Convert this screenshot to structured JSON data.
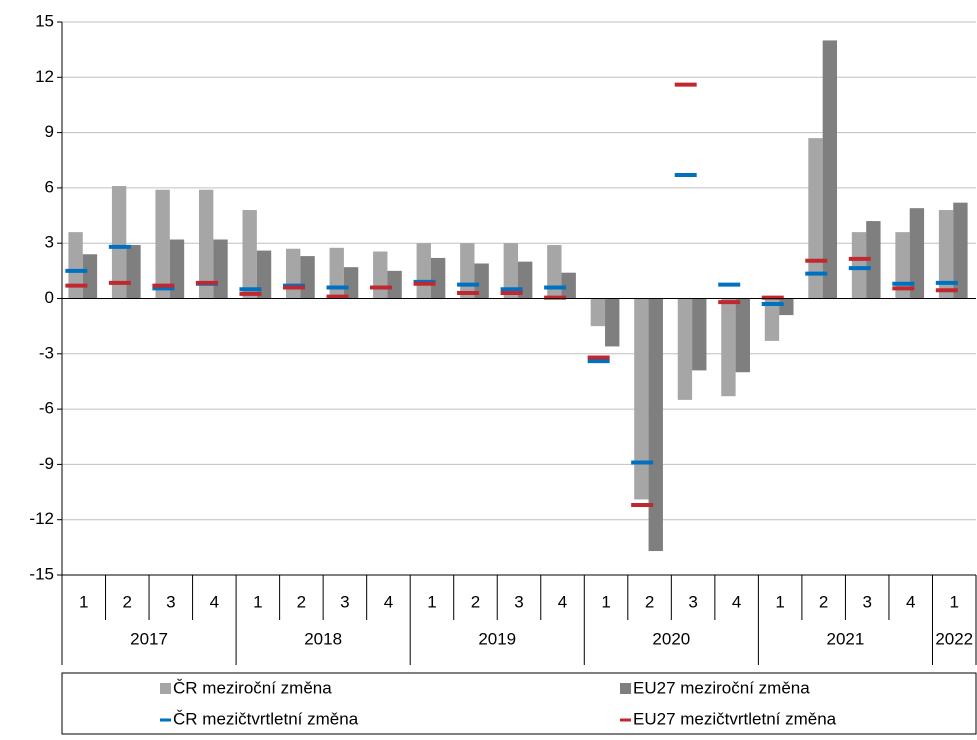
{
  "chart_data": {
    "type": "bar",
    "categories": [
      "1",
      "2",
      "3",
      "4",
      "1",
      "2",
      "3",
      "4",
      "1",
      "2",
      "3",
      "4",
      "1",
      "2",
      "3",
      "4",
      "1",
      "2",
      "3",
      "4",
      "1"
    ],
    "year_labels": [
      "2017",
      null,
      null,
      null,
      "2018",
      null,
      null,
      null,
      "2019",
      null,
      null,
      null,
      "2020",
      null,
      null,
      null,
      "2021",
      null,
      null,
      null,
      "2022"
    ],
    "series": [
      {
        "name": "ČR meziroční změna",
        "color": "#a6a6a6",
        "kind": "bar",
        "values": [
          3.6,
          6.1,
          5.9,
          5.9,
          4.8,
          2.7,
          2.75,
          2.55,
          3.0,
          3.0,
          3.0,
          2.9,
          -1.5,
          -10.9,
          -5.5,
          -5.3,
          -2.3,
          8.7,
          3.6,
          3.6,
          4.8
        ]
      },
      {
        "name": "EU27 meziroční změna",
        "color": "#7f7f7f",
        "kind": "bar",
        "values": [
          2.4,
          2.9,
          3.2,
          3.2,
          2.6,
          2.3,
          1.7,
          1.5,
          2.2,
          1.9,
          2.0,
          1.4,
          -2.6,
          -13.7,
          -3.9,
          -4.0,
          -0.9,
          14.0,
          4.2,
          4.9,
          5.2
        ]
      },
      {
        "name": "ČR mezičtvrtletní změna",
        "color": "#0070c0",
        "kind": "dash",
        "values": [
          1.5,
          2.8,
          0.55,
          0.8,
          0.5,
          0.7,
          0.6,
          0.6,
          0.9,
          0.75,
          0.5,
          0.6,
          -3.4,
          -8.9,
          6.7,
          0.75,
          -0.3,
          1.35,
          1.65,
          0.8,
          0.85
        ]
      },
      {
        "name": "EU27 mezičtvrtletní změna",
        "color": "#c0282f",
        "kind": "dash",
        "values": [
          0.7,
          0.85,
          0.7,
          0.85,
          0.25,
          0.6,
          0.1,
          0.6,
          0.8,
          0.3,
          0.3,
          0.05,
          -3.2,
          -11.2,
          11.6,
          -0.2,
          0.05,
          2.05,
          2.15,
          0.55,
          0.45
        ]
      }
    ],
    "ylim": [
      -15,
      15
    ],
    "yticks": [
      -15,
      -12,
      -9,
      -6,
      -3,
      0,
      3,
      6,
      9,
      12,
      15
    ],
    "grid": true
  }
}
